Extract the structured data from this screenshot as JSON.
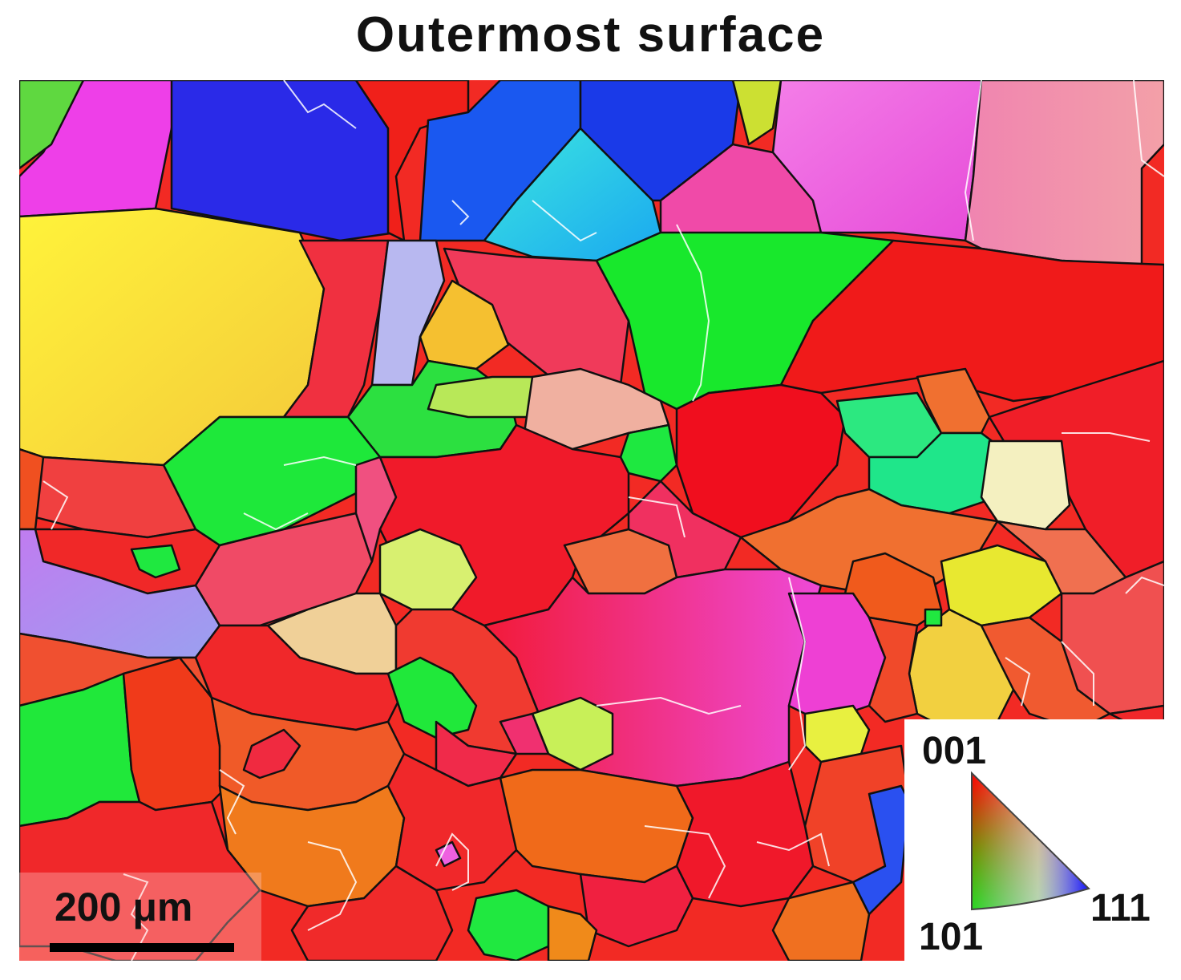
{
  "figure": {
    "title": "Outermost surface"
  },
  "scale_bar": {
    "label": "200 μm"
  },
  "ipf_legend": {
    "vertex_top": "001",
    "vertex_bottom_left": "101",
    "vertex_right": "111",
    "colors": {
      "001": "#ff0000",
      "101": "#00ff00",
      "111": "#0000ff"
    }
  },
  "palette": {
    "red": "#f01818",
    "green": "#19e52f",
    "blue": "#1c2ff0",
    "yellow": "#f5ec20",
    "magenta": "#ee3fe8",
    "orange": "#f06a1c",
    "cyan": "#26e6e0",
    "pink": "#f0607a"
  }
}
